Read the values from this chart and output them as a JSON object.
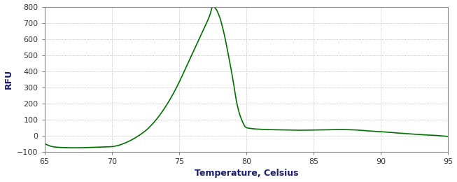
{
  "xlim": [
    65,
    95
  ],
  "ylim": [
    -100,
    800
  ],
  "xticks": [
    65,
    70,
    75,
    80,
    85,
    90,
    95
  ],
  "yticks": [
    -100,
    0,
    100,
    200,
    300,
    400,
    500,
    600,
    700,
    800
  ],
  "xlabel": "Temperature, Celsius",
  "ylabel": "RFU",
  "line_color": "#007000",
  "bg_color": "#ffffff",
  "plot_bg_color": "#ffffff",
  "grid_color": "#b0b0b0",
  "axis_label_color": "#1a1a6e",
  "tick_label_color": "#333333",
  "figsize": [
    6.53,
    2.6
  ],
  "dpi": 100,
  "curve_points_x": [
    65.0,
    65.3,
    65.6,
    66.0,
    66.5,
    67.0,
    67.5,
    68.0,
    68.5,
    69.0,
    69.5,
    70.0,
    70.5,
    71.0,
    71.5,
    72.0,
    72.5,
    73.0,
    73.5,
    74.0,
    74.5,
    75.0,
    75.5,
    76.0,
    76.5,
    77.0,
    77.3,
    77.5,
    77.7,
    78.0,
    78.3,
    78.6,
    79.0,
    79.3,
    79.6,
    80.0,
    80.3,
    80.6,
    81.0,
    81.5,
    82.0,
    82.5,
    83.0,
    84.0,
    85.0,
    86.0,
    87.0,
    88.0,
    89.0,
    90.0,
    91.0,
    92.0,
    93.0,
    94.0,
    95.0
  ],
  "curve_points_y": [
    -50,
    -60,
    -68,
    -72,
    -74,
    -75,
    -75,
    -74,
    -73,
    -71,
    -70,
    -68,
    -60,
    -45,
    -25,
    0,
    30,
    70,
    120,
    180,
    250,
    330,
    420,
    510,
    600,
    690,
    750,
    800,
    790,
    740,
    650,
    530,
    350,
    200,
    110,
    50,
    45,
    42,
    40,
    38,
    37,
    36,
    35,
    34,
    35,
    36,
    38,
    36,
    30,
    25,
    18,
    12,
    6,
    2,
    -5
  ]
}
